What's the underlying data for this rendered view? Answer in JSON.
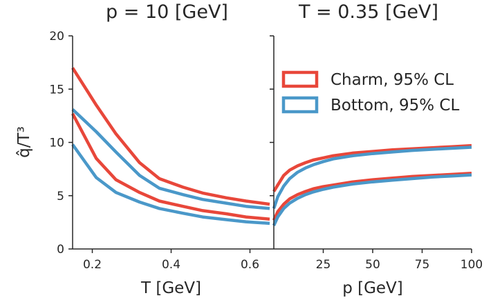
{
  "ylabel": "q̂/T³",
  "legend": [
    {
      "label": "Charm, 95% CL",
      "color": "#e8473a"
    },
    {
      "label": "Bottom, 95% CL",
      "color": "#4a98c9"
    }
  ],
  "chart_data": [
    {
      "type": "line",
      "title": "p = 10 [GeV]",
      "xlabel": "T [GeV]",
      "ylabel": "q̂/T³",
      "xlim": [
        0.15,
        0.65
      ],
      "ylim": [
        0,
        20
      ],
      "xticks": [
        0.2,
        0.4,
        0.6
      ],
      "xtick_labels": [
        "0.2",
        "0.4",
        "0.6"
      ],
      "yticks": [
        0,
        5,
        10,
        15,
        20
      ],
      "ytick_labels": [
        "0",
        "5",
        "10",
        "15",
        "20"
      ],
      "grid": false,
      "series": [
        {
          "name": "Charm, 95% CL",
          "bound": "upper",
          "color": "#e8473a",
          "x": [
            0.15,
            0.21,
            0.26,
            0.32,
            0.37,
            0.43,
            0.48,
            0.54,
            0.59,
            0.65
          ],
          "y": [
            17.0,
            13.5,
            10.8,
            8.1,
            6.6,
            5.8,
            5.25,
            4.8,
            4.5,
            4.2
          ]
        },
        {
          "name": "Charm, 95% CL",
          "bound": "lower",
          "color": "#e8473a",
          "x": [
            0.15,
            0.21,
            0.26,
            0.32,
            0.37,
            0.43,
            0.48,
            0.54,
            0.59,
            0.65
          ],
          "y": [
            12.7,
            8.5,
            6.5,
            5.3,
            4.5,
            4.0,
            3.6,
            3.3,
            3.0,
            2.8
          ]
        },
        {
          "name": "Bottom, 95% CL",
          "bound": "upper",
          "color": "#4a98c9",
          "x": [
            0.15,
            0.21,
            0.26,
            0.32,
            0.37,
            0.43,
            0.48,
            0.54,
            0.59,
            0.65
          ],
          "y": [
            13.1,
            11.0,
            9.1,
            6.9,
            5.7,
            5.1,
            4.65,
            4.3,
            4.0,
            3.8
          ]
        },
        {
          "name": "Bottom, 95% CL",
          "bound": "lower",
          "color": "#4a98c9",
          "x": [
            0.15,
            0.21,
            0.26,
            0.32,
            0.37,
            0.43,
            0.48,
            0.54,
            0.59,
            0.65
          ],
          "y": [
            9.8,
            6.7,
            5.3,
            4.4,
            3.8,
            3.35,
            3.0,
            2.75,
            2.55,
            2.4
          ]
        }
      ]
    },
    {
      "type": "line",
      "title": "T = 0.35 [GeV]",
      "xlabel": "p [GeV]",
      "xlim": [
        0,
        100
      ],
      "ylim": [
        0,
        20
      ],
      "xticks": [
        25,
        50,
        75,
        100
      ],
      "xtick_labels": [
        "25",
        "50",
        "75",
        "100"
      ],
      "grid": false,
      "legend_position": "upper-right",
      "series": [
        {
          "name": "Charm, 95% CL",
          "bound": "upper",
          "color": "#e8473a",
          "x": [
            0,
            2,
            5,
            8,
            12,
            16,
            20,
            25,
            30,
            40,
            50,
            60,
            70,
            80,
            90,
            100
          ],
          "y": [
            5.4,
            6.0,
            6.9,
            7.4,
            7.8,
            8.1,
            8.35,
            8.55,
            8.75,
            9.0,
            9.15,
            9.3,
            9.4,
            9.5,
            9.6,
            9.7
          ]
        },
        {
          "name": "Charm, 95% CL",
          "bound": "lower",
          "color": "#e8473a",
          "x": [
            0,
            2,
            5,
            8,
            12,
            16,
            20,
            25,
            30,
            40,
            50,
            60,
            70,
            80,
            90,
            100
          ],
          "y": [
            2.7,
            3.5,
            4.2,
            4.7,
            5.1,
            5.4,
            5.65,
            5.85,
            6.0,
            6.3,
            6.5,
            6.65,
            6.8,
            6.9,
            7.0,
            7.1
          ]
        },
        {
          "name": "Bottom, 95% CL",
          "bound": "upper",
          "color": "#4a98c9",
          "x": [
            0,
            2,
            5,
            8,
            12,
            16,
            20,
            25,
            30,
            40,
            50,
            60,
            70,
            80,
            90,
            100
          ],
          "y": [
            3.8,
            4.9,
            5.9,
            6.6,
            7.2,
            7.6,
            7.9,
            8.2,
            8.45,
            8.75,
            8.95,
            9.1,
            9.25,
            9.35,
            9.45,
            9.55
          ]
        },
        {
          "name": "Bottom, 95% CL",
          "bound": "lower",
          "color": "#4a98c9",
          "x": [
            0,
            2,
            5,
            8,
            12,
            16,
            20,
            25,
            30,
            40,
            50,
            60,
            70,
            80,
            90,
            100
          ],
          "y": [
            2.2,
            3.0,
            3.8,
            4.3,
            4.75,
            5.1,
            5.35,
            5.6,
            5.8,
            6.1,
            6.3,
            6.45,
            6.6,
            6.75,
            6.85,
            6.95
          ]
        }
      ]
    }
  ]
}
